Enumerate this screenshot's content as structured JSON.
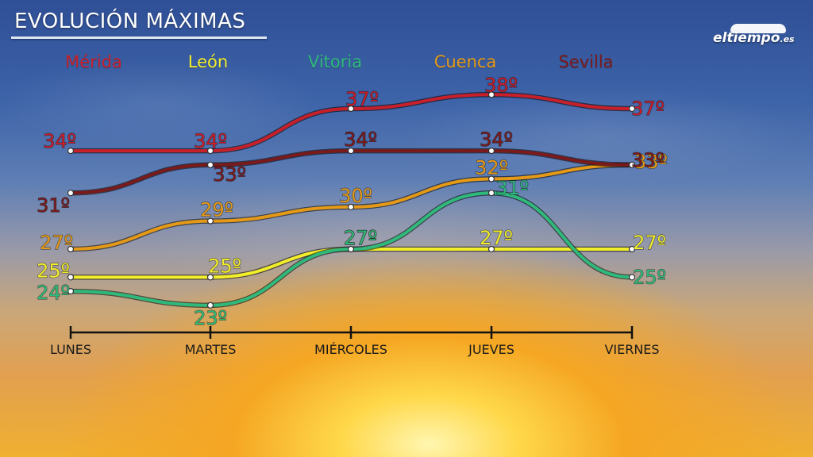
{
  "header": {
    "title": "EVOLUCIÓN MÁXIMAS",
    "logo_text": "eltiempo",
    "logo_suffix": ".es"
  },
  "colors": {
    "Mérida": "#c8202a",
    "León": "#f2ee2a",
    "Vitoria": "#2fb97a",
    "Cuenca": "#e59a17",
    "Sevilla": "#7a1a1a"
  },
  "chart_data": {
    "type": "line",
    "title": "EVOLUCIÓN MÁXIMAS",
    "categories": [
      "LUNES",
      "MARTES",
      "MIÉRCOLES",
      "JUEVES",
      "VIERNES"
    ],
    "unit": "º",
    "series": [
      {
        "name": "Mérida",
        "values": [
          34,
          34,
          37,
          38,
          37
        ]
      },
      {
        "name": "León",
        "values": [
          25,
          25,
          27,
          27,
          27
        ]
      },
      {
        "name": "Vitoria",
        "values": [
          24,
          23,
          27,
          31,
          25
        ]
      },
      {
        "name": "Cuenca",
        "values": [
          27,
          29,
          30,
          32,
          33
        ]
      },
      {
        "name": "Sevilla",
        "values": [
          31,
          33,
          34,
          34,
          33
        ]
      }
    ]
  }
}
